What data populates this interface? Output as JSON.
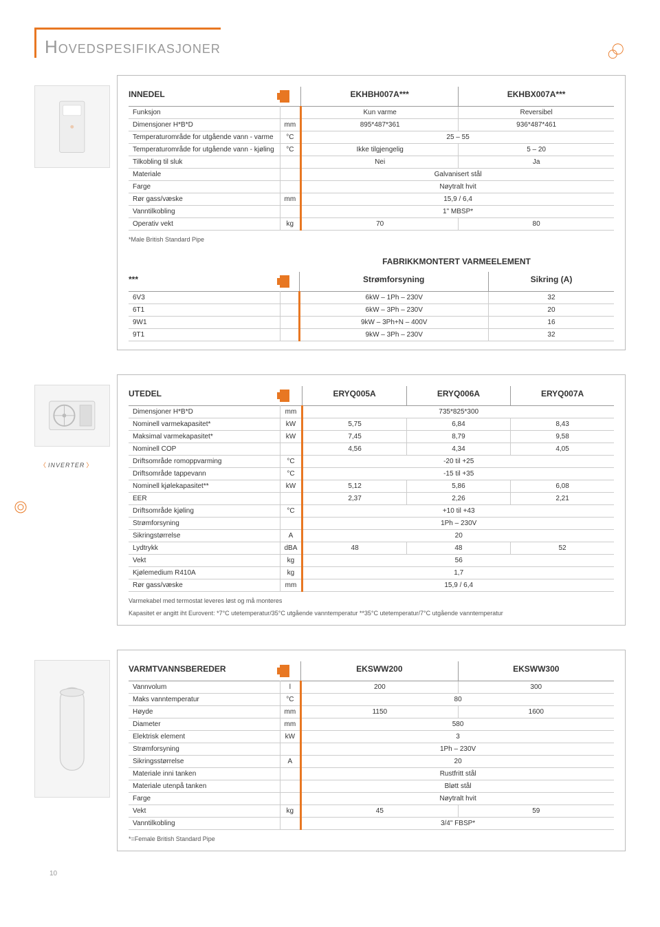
{
  "page_title": "Hovedspesifikasjoner",
  "page_number": "10",
  "accent_color": "#e87722",
  "innedel": {
    "title": "INNEDEL",
    "cols": [
      "EKHBH007A***",
      "EKHBX007A***"
    ],
    "rows": [
      {
        "label": "Funksjon",
        "unit": "",
        "vals": [
          "Kun varme",
          "Reversibel"
        ]
      },
      {
        "label": "Dimensjoner H*B*D",
        "unit": "mm",
        "vals": [
          "895*487*361",
          "936*487*461"
        ]
      },
      {
        "label": "Temperaturområde for utgående vann - varme",
        "unit": "°C",
        "span": "25 – 55"
      },
      {
        "label": "Temperaturområde for utgående vann - kjøling",
        "unit": "°C",
        "vals": [
          "Ikke tilgjengelig",
          "5 – 20"
        ]
      },
      {
        "label": "Tilkobling til sluk",
        "unit": "",
        "vals": [
          "Nei",
          "Ja"
        ]
      },
      {
        "label": "Materiale",
        "unit": "",
        "span": "Galvanisert stål"
      },
      {
        "label": "Farge",
        "unit": "",
        "span": "Nøytralt hvit"
      },
      {
        "label": "Rør gass/væske",
        "unit": "mm",
        "span": "15,9 / 6,4"
      },
      {
        "label": "Vanntilkobling",
        "unit": "",
        "span": "1\" MBSP*"
      },
      {
        "label": "Operativ vekt",
        "unit": "kg",
        "vals": [
          "70",
          "80"
        ]
      }
    ],
    "footnote": "*Male British Standard Pipe",
    "sub_title": "FABRIKKMONTERT VARMEELEMENT",
    "sub_label": "***",
    "sub_cols": [
      "Strømforsyning",
      "Sikring (A)"
    ],
    "sub_rows": [
      {
        "label": "6V3",
        "vals": [
          "6kW – 1Ph – 230V",
          "32"
        ]
      },
      {
        "label": "6T1",
        "vals": [
          "6kW – 3Ph – 230V",
          "20"
        ]
      },
      {
        "label": "9W1",
        "vals": [
          "9kW – 3Ph+N – 400V",
          "16"
        ]
      },
      {
        "label": "9T1",
        "vals": [
          "9kW – 3Ph – 230V",
          "32"
        ]
      }
    ]
  },
  "utedel": {
    "title": "UTEDEL",
    "cols": [
      "ERYQ005A",
      "ERYQ006A",
      "ERYQ007A"
    ],
    "inverter": "INVERTER",
    "rows": [
      {
        "label": "Dimensjoner H*B*D",
        "unit": "mm",
        "span": "735*825*300"
      },
      {
        "label": "Nominell varmekapasitet*",
        "unit": "kW",
        "vals": [
          "5,75",
          "6,84",
          "8,43"
        ]
      },
      {
        "label": "Maksimal varmekapasitet*",
        "unit": "kW",
        "vals": [
          "7,45",
          "8,79",
          "9,58"
        ]
      },
      {
        "label": "Nominell COP",
        "unit": "",
        "vals": [
          "4,56",
          "4,34",
          "4,05"
        ]
      },
      {
        "label": "Driftsområde romoppvarming",
        "unit": "°C",
        "span": "-20 til +25"
      },
      {
        "label": "Driftsområde tappevann",
        "unit": "°C",
        "span": "-15 til +35"
      },
      {
        "label": "Nominell kjølekapasitet**",
        "unit": "kW",
        "vals": [
          "5,12",
          "5,86",
          "6,08"
        ]
      },
      {
        "label": "EER",
        "unit": "",
        "vals": [
          "2,37",
          "2,26",
          "2,21"
        ]
      },
      {
        "label": "Driftsområde kjøling",
        "unit": "°C",
        "span": "+10 til +43"
      },
      {
        "label": "Strømforsyning",
        "unit": "",
        "span": "1Ph – 230V"
      },
      {
        "label": "Sikringstørrelse",
        "unit": "A",
        "span": "20"
      },
      {
        "label": "Lydtrykk",
        "unit": "dBA",
        "vals": [
          "48",
          "48",
          "52"
        ]
      },
      {
        "label": "Vekt",
        "unit": "kg",
        "span": "56"
      },
      {
        "label": "Kjølemedium R410A",
        "unit": "kg",
        "span": "1,7"
      },
      {
        "label": "Rør gass/væske",
        "unit": "mm",
        "span": "15,9 / 6,4"
      }
    ],
    "footnote1": "Varmekabel med termostat leveres løst og må monteres",
    "footnote2": "Kapasitet er angitt iht Eurovent:  *7°C utetemperatur/35°C utgående vanntemperatur   **35°C utetemperatur/7°C utgående vanntemperatur"
  },
  "varmtvann": {
    "title": "VARMTVANNSBEREDER",
    "cols": [
      "EKSWW200",
      "EKSWW300"
    ],
    "rows": [
      {
        "label": "Vannvolum",
        "unit": "l",
        "vals": [
          "200",
          "300"
        ]
      },
      {
        "label": "Maks vanntemperatur",
        "unit": "°C",
        "span": "80"
      },
      {
        "label": "Høyde",
        "unit": "mm",
        "vals": [
          "1150",
          "1600"
        ]
      },
      {
        "label": "Diameter",
        "unit": "mm",
        "span": "580"
      },
      {
        "label": "Elektrisk element",
        "unit": "kW",
        "span": "3"
      },
      {
        "label": "Strømforsyning",
        "unit": "",
        "span": "1Ph – 230V"
      },
      {
        "label": "Sikringsstørrelse",
        "unit": "A",
        "span": "20"
      },
      {
        "label": "Materiale inni tanken",
        "unit": "",
        "span": "Rustfritt stål"
      },
      {
        "label": "Materiale utenpå tanken",
        "unit": "",
        "span": "Bløtt stål"
      },
      {
        "label": "Farge",
        "unit": "",
        "span": "Nøytralt hvit"
      },
      {
        "label": "Vekt",
        "unit": "kg",
        "vals": [
          "45",
          "59"
        ]
      },
      {
        "label": "Vanntilkobling",
        "unit": "",
        "span": "3/4\" FBSP*"
      }
    ],
    "footnote": "*=Female British Standard Pipe"
  }
}
